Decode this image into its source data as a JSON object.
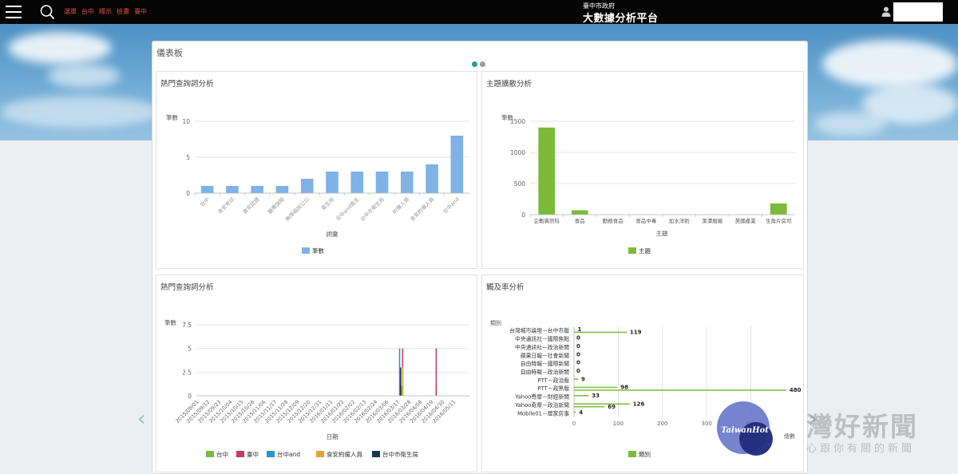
{
  "topbar": {
    "nav_links": [
      "選單",
      "台中",
      "標示",
      "檢書",
      "臺中"
    ],
    "gov_title": "臺中市政府",
    "platform_title": "大數據分析平台"
  },
  "panel": {
    "title": "儀表板"
  },
  "carousel": {
    "dot_colors": [
      "#2aa189",
      "#9e9e9e"
    ]
  },
  "watermark": {
    "main": "灣好新聞",
    "sub": "心跟你有關的新聞",
    "logo_text": "TaiwanHot"
  },
  "colors": {
    "bar_blue": "#7fb2e5",
    "bar_green": "#7cbb3a",
    "accent": "#2aa189"
  },
  "charts": [
    {
      "title": "熱門查詢詞分析",
      "chart_data": {
        "type": "bar",
        "categories": [
          "台中",
          "食安考試",
          "食安認證",
          "醫療保險",
          "無障礙說公公",
          "衛生局",
          "台中and衛生",
          "台中市衛生局",
          "約僱人員",
          "食安約僱人員",
          "台中and"
        ],
        "values": [
          1,
          1,
          1,
          1,
          2,
          3,
          3,
          3,
          3,
          4,
          8
        ],
        "ylabel": "筆數",
        "xlabel": "詞彙",
        "yticks": [
          "10",
          "5",
          "0"
        ],
        "ylim": [
          0,
          10
        ],
        "legend": [
          "筆數"
        ]
      }
    },
    {
      "title": "主題擴散分析",
      "chart_data": {
        "type": "bar",
        "categories": [
          "企劃資訊科",
          "食品",
          "勤務食品",
          "食品中毒",
          "加水洋奶",
          "潔潭廢廠",
          "美國產業",
          "生角片房司"
        ],
        "values": [
          1400,
          70,
          3,
          3,
          3,
          3,
          3,
          180
        ],
        "ylabel": "筆數",
        "xlabel": "主題",
        "yticks": [
          "1500",
          "1000",
          "500",
          "0"
        ],
        "ylim": [
          0,
          1500
        ],
        "legend": [
          "主題"
        ]
      }
    },
    {
      "title": "熱門查詢詞分析",
      "chart_data": {
        "type": "bar",
        "x": [
          "2015/09/01",
          "2015/09/12",
          "2015/09/23",
          "2015/10/04",
          "2015/10/15",
          "2015/10/26",
          "2015/11/06",
          "2015/11/17",
          "2015/11/28",
          "2015/12/09",
          "2015/12/20",
          "2015/12/31",
          "2016/01/11",
          "2016/01/22",
          "2016/02/02",
          "2016/02/13",
          "2016/02/24",
          "2016/03/06",
          "2016/03/17",
          "2016/03/28",
          "2016/04/08",
          "2016/04/19",
          "2016/04/30",
          "2016/05/11"
        ],
        "ylabel": "筆數",
        "xlabel": "日期",
        "yticks": [
          "7.5",
          "5",
          "2.5",
          "0"
        ],
        "ylim": [
          0,
          7.5
        ],
        "series": [
          {
            "name": "台中",
            "color": "#7cbb3a",
            "points": [
              {
                "x": "2016/03/21",
                "y": 1
              }
            ]
          },
          {
            "name": "臺中",
            "color": "#c2405b",
            "points": [
              {
                "x": "2016/03/22",
                "y": 5
              },
              {
                "x": "2016/04/24",
                "y": 5
              },
              {
                "x": "2016/04/24",
                "y": 1
              }
            ]
          },
          {
            "name": "台中and",
            "color": "#2b93d1",
            "points": [
              {
                "x": "2016/03/19",
                "y": 5
              }
            ]
          },
          {
            "name": "食安約僱人員",
            "color": "#e5a23a",
            "points": [
              {
                "x": "2016/03/22",
                "y": 3
              }
            ]
          },
          {
            "name": "台中市衛生局",
            "color": "#163a4f",
            "points": [
              {
                "x": "2016/03/20",
                "y": 3
              }
            ]
          }
        ]
      }
    },
    {
      "title": "觸及率分析",
      "chart_data": {
        "type": "bar",
        "orientation": "horizontal",
        "ylabel": "類別",
        "xlabel": "總數",
        "xticks": [
          "0",
          "100",
          "200",
          "300",
          "400"
        ],
        "xlim": [
          0,
          500
        ],
        "legend": [
          "類別"
        ],
        "categories": [
          "台灣城市論壇－台中市版",
          "中央通訊社－國際焦點",
          "中央通訊社－政治新聞",
          "蘋果日報－社會新聞",
          "自由時報－國際新聞",
          "自由時報－政治新聞",
          "PTT－政治版",
          "PTT－政黑版",
          "Yahoo奇摩－財經新聞",
          "Yahoo奇摩－政治新聞",
          "Mobile01－居家房事"
        ],
        "values": [
          [
            1,
            119
          ],
          [
            0
          ],
          [
            0
          ],
          [
            0
          ],
          [
            0
          ],
          [
            0
          ],
          [
            9
          ],
          [
            98,
            480
          ],
          [
            33
          ],
          [
            126,
            69
          ],
          [
            4
          ]
        ],
        "value_labels": [
          [
            "1",
            "119"
          ],
          [
            "0"
          ],
          [
            "0"
          ],
          [
            "0"
          ],
          [
            "0"
          ],
          [
            "0"
          ],
          [
            "9"
          ],
          [
            "98",
            "480"
          ],
          [
            "33"
          ],
          [
            "126",
            "69"
          ],
          [
            "4"
          ]
        ]
      }
    }
  ]
}
